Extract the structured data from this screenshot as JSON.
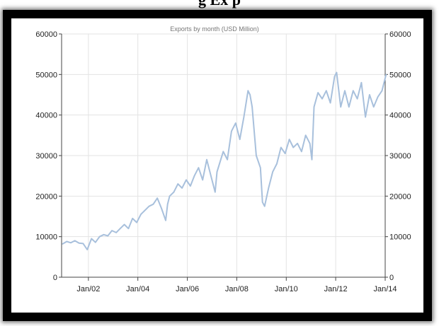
{
  "header": {
    "text": "g Ex p"
  },
  "chart_data": {
    "type": "line",
    "title": "Exports by month (USD Million)",
    "xlabel": "",
    "ylabel": "",
    "ylim": [
      0,
      60000
    ],
    "yticks": [
      0,
      10000,
      20000,
      30000,
      40000,
      50000,
      60000
    ],
    "xlim": [
      "2000-12-01",
      "2014-01-01"
    ],
    "xticks": [
      {
        "date": "2002-01-01",
        "label": "Jan/02"
      },
      {
        "date": "2004-01-01",
        "label": "Jan/04"
      },
      {
        "date": "2006-01-01",
        "label": "Jan/06"
      },
      {
        "date": "2008-01-01",
        "label": "Jan/08"
      },
      {
        "date": "2010-01-01",
        "label": "Jan/10"
      },
      {
        "date": "2012-01-01",
        "label": "Jan/12"
      },
      {
        "date": "2014-01-01",
        "label": "Jan/14"
      }
    ],
    "grid": true,
    "line_color": "#a8c0dc",
    "series": [
      {
        "x": [
          "2000-12",
          "2001-02",
          "2001-04",
          "2001-06",
          "2001-08",
          "2001-10",
          "2001-12",
          "2002-02",
          "2002-04",
          "2002-06",
          "2002-08",
          "2002-10",
          "2002-12",
          "2003-02",
          "2003-04",
          "2003-06",
          "2003-08",
          "2003-10",
          "2003-12",
          "2004-02",
          "2004-04",
          "2004-06",
          "2004-08",
          "2004-10",
          "2004-12",
          "2005-02",
          "2005-03",
          "2005-04",
          "2005-06",
          "2005-08",
          "2005-10",
          "2005-12",
          "2006-02",
          "2006-04",
          "2006-06",
          "2006-08",
          "2006-10",
          "2006-12",
          "2007-02",
          "2007-03",
          "2007-06",
          "2007-08",
          "2007-10",
          "2007-12",
          "2008-02",
          "2008-04",
          "2008-06",
          "2008-07",
          "2008-08",
          "2008-10",
          "2008-12",
          "2009-01",
          "2009-02",
          "2009-04",
          "2009-06",
          "2009-08",
          "2009-10",
          "2009-12",
          "2010-02",
          "2010-04",
          "2010-06",
          "2010-08",
          "2010-10",
          "2010-12",
          "2011-01",
          "2011-02",
          "2011-04",
          "2011-06",
          "2011-08",
          "2011-10",
          "2011-12",
          "2012-01",
          "2012-03",
          "2012-05",
          "2012-07",
          "2012-09",
          "2012-11",
          "2013-01",
          "2013-03",
          "2013-05",
          "2013-07",
          "2013-09",
          "2013-11",
          "2014-01"
        ],
        "y": [
          8200,
          8800,
          8500,
          9000,
          8400,
          8300,
          6800,
          9500,
          8600,
          10000,
          10500,
          10200,
          11500,
          11000,
          12000,
          13000,
          12000,
          14500,
          13500,
          15500,
          16500,
          17500,
          18000,
          19500,
          17000,
          14000,
          18000,
          20000,
          21000,
          23000,
          22000,
          24000,
          22500,
          25000,
          27000,
          24000,
          29000,
          25000,
          21000,
          26000,
          31000,
          29000,
          36000,
          38000,
          34000,
          39500,
          46000,
          45000,
          42000,
          30000,
          27000,
          18500,
          17500,
          22000,
          26000,
          28000,
          32000,
          30500,
          34000,
          32000,
          33000,
          31000,
          35000,
          33000,
          29000,
          42000,
          45500,
          44000,
          46000,
          43000,
          49500,
          50500,
          42000,
          46000,
          42000,
          46000,
          44000,
          48000,
          39500,
          45000,
          42000,
          44500,
          46000,
          50000
        ]
      }
    ]
  }
}
